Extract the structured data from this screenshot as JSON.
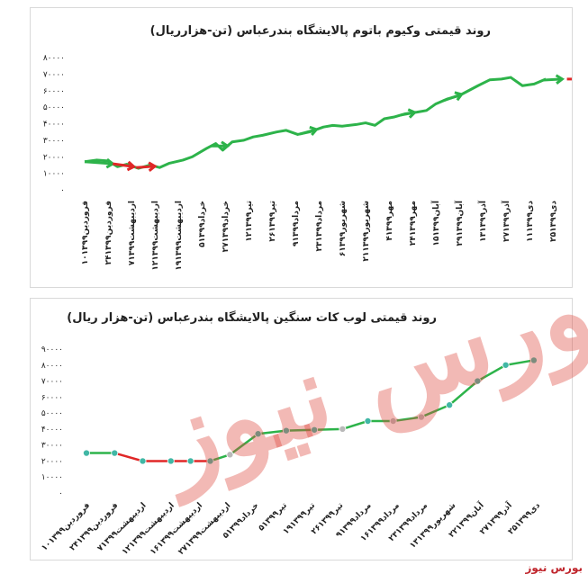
{
  "brand": "بورس نیوز",
  "watermark": "بورس نیوز",
  "colors": {
    "line": "#2db34a",
    "down": "#e02727",
    "marker_fill": "#41b7a5",
    "marker_gray": "#b9b9b9"
  },
  "chart_data": [
    {
      "type": "line",
      "title": "روند قیمتی وکیوم باتوم پالایشگاه بندرعباس (تن-هزارریال)",
      "xlabel": "",
      "ylabel": "",
      "ylim": [
        0,
        80000
      ],
      "yticks": [
        "۰",
        "۱۰۰۰۰",
        "۲۰۰۰۰",
        "۳۰۰۰۰",
        "۴۰۰۰۰",
        "۵۰۰۰۰",
        "۶۰۰۰۰",
        "۷۰۰۰۰",
        "۸۰۰۰۰"
      ],
      "categories": [
        "۱۰فروردین۱۳۹۹",
        "۲۴فروردین۱۳۹۹",
        "۷اردیبهشت۱۳۹۹",
        "۱۲اردیبهشت۱۳۹۹",
        "۱۹اردیبهشت۱۳۹۹",
        "۵خرداد۱۳۹۹",
        "۲۷خرداد۱۳۹۹",
        "۱۲تیر۱۳۹۹",
        "۲۶تیر۱۳۹۹",
        "۹مرداد۱۳۹۹",
        "۲۳مرداد۱۳۹۹",
        "۶شهریور۱۳۹۹",
        "۲۱شهریور۱۳۹۹",
        "۴مهر۱۳۹۹",
        "۲۴مهر۱۳۹۹",
        "۱۵آبان۱۳۹۹",
        "۲۹آبان۱۳۹۹",
        "۱۳آذر۱۳۹۹",
        "۲۷آذر۱۳۹۹",
        "۱۱دی۱۳۹۹",
        "۲۵دی۱۳۹۹"
      ],
      "x": [
        0,
        0.5,
        1,
        1.4,
        1.8,
        2.3,
        2.8,
        3.2,
        3.6,
        4.2,
        4.6,
        5.2,
        5.6,
        5.9,
        6.3,
        6.8,
        7.2,
        7.6,
        8.2,
        8.6,
        9.1,
        9.6,
        10.2,
        10.6,
        11,
        11.6,
        12,
        12.4,
        12.8,
        13.2,
        13.7,
        14.2,
        14.6,
        15,
        15.5,
        16,
        16.4,
        16.8,
        17.3,
        17.8,
        18.2,
        18.7,
        19.2,
        19.7
      ],
      "values": [
        17000,
        18000,
        17500,
        14000,
        15500,
        13000,
        15000,
        13500,
        16000,
        18000,
        20000,
        25000,
        28000,
        24000,
        29000,
        30000,
        32000,
        33000,
        35000,
        36000,
        33500,
        35000,
        38000,
        39000,
        38500,
        39500,
        40500,
        39000,
        43000,
        44000,
        46000,
        47000,
        48000,
        52000,
        55000,
        57000,
        60000,
        63000,
        66500,
        67000,
        68000,
        63000,
        64000,
        67000
      ],
      "arrows": [
        [
          0,
          1.2
        ],
        [
          1.2,
          2.1
        ],
        [
          2.2,
          3.0
        ],
        [
          5.4,
          6.1
        ],
        [
          9.2,
          9.9
        ],
        [
          13.5,
          14.1
        ],
        [
          15.3,
          16.1
        ],
        [
          19.6,
          20.4
        ],
        [
          20.6,
          21.2
        ]
      ],
      "arrow_colors": [
        "up",
        "down",
        "down",
        "up",
        "up",
        "up",
        "up",
        "up",
        "down"
      ]
    },
    {
      "type": "line",
      "title": "روند قیمتی لوب کات سنگین پالایشگاه بندرعباس (تن-هزار ریال)",
      "xlabel": "",
      "ylabel": "",
      "ylim": [
        0,
        90000
      ],
      "yticks": [
        "۰",
        "۱۰۰۰۰",
        "۲۰۰۰۰",
        "۳۰۰۰۰",
        "۴۰۰۰۰",
        "۵۰۰۰۰",
        "۶۰۰۰۰",
        "۷۰۰۰۰",
        "۸۰۰۰۰",
        "۹۰۰۰۰"
      ],
      "categories": [
        "۱۰فروردین۱۳۹۹",
        "۲۴فروردین۱۳۹۹",
        "۷اردیبهشت۱۳۹۹",
        "۱۲اردیبهشت۱۳۹۹",
        "۱۶اردیبهشت۱۳۹۹",
        "۲۷اردیبهشت۱۳۹۹",
        "۵خرداد۱۳۹۹",
        "۵تیر۱۳۹۹",
        "۱۹تیر۱۳۹۹",
        "۲۶تیر۱۳۹۹",
        "۹مرداد۱۳۹۹",
        "۱۶مرداد۱۳۹۹",
        "۲۳مرداد۱۳۹۹",
        "۱۳شهریور۱۳۹۹",
        "۲۲آبان۱۳۹۹",
        "۲۷آذر۱۳۹۹",
        "۲۵دی۱۳۹۹"
      ],
      "values": [
        25000,
        25000,
        20000,
        20000,
        20000,
        20000,
        24000,
        37000,
        39000,
        39500,
        40000,
        45000,
        45000,
        47500,
        55000,
        70000,
        80000,
        83000
      ],
      "x": [
        0,
        1,
        2,
        3,
        3.7,
        4.4,
        5.1,
        6.1,
        7.1,
        8.1,
        9.1,
        10,
        10.9,
        11.9,
        12.9,
        13.9,
        14.9,
        15.9
      ]
    }
  ]
}
